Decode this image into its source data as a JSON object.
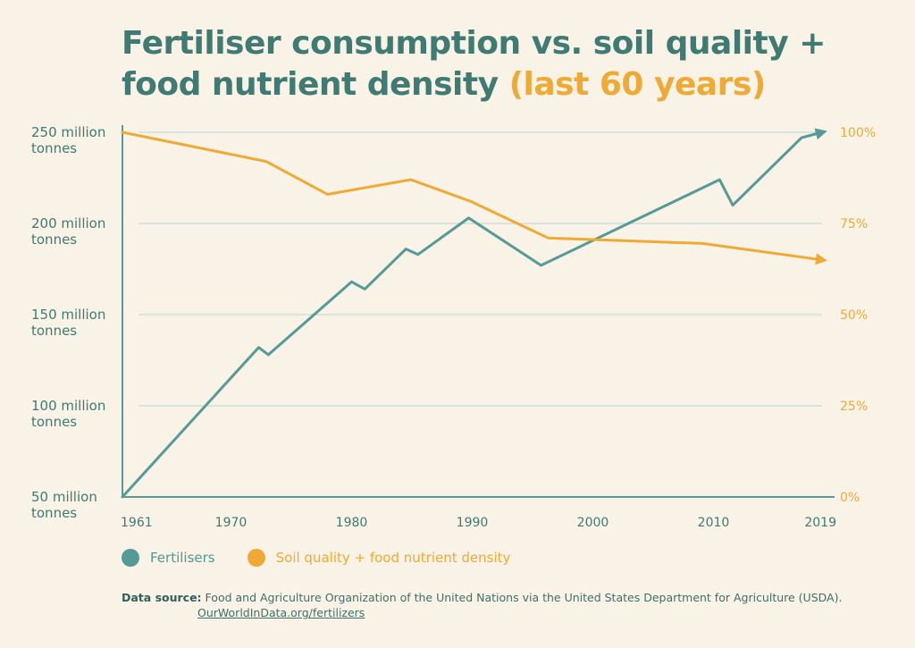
{
  "title": {
    "main": "Fertiliser consumption vs. soil quality + food nutrient density",
    "accent": "(last 60 years)"
  },
  "colors": {
    "fertilisers": "#559a96",
    "soil": "#eeaa35",
    "title": "#3f7a73",
    "grid": "#bcd6d2",
    "background": "#f9f2e6"
  },
  "legend": {
    "fertilisers": "Fertilisers",
    "soil": "Soil quality + food nutrient density"
  },
  "source": {
    "label": "Data source:",
    "text": "Food and Agriculture Organization of the United Nations via the United States Department for Agriculture (USDA).",
    "link": "OurWorldInData.org/fertilizers"
  },
  "chart_data": {
    "type": "line",
    "x_ticks": [
      "1961",
      "1970",
      "1980",
      "1990",
      "2000",
      "2010",
      "2019"
    ],
    "xlim": [
      1961,
      2019
    ],
    "y_left": {
      "ticks": [
        {
          "value": 250,
          "line1": "250 million",
          "line2": "tonnes"
        },
        {
          "value": 200,
          "line1": "200 million",
          "line2": "tonnes"
        },
        {
          "value": 150,
          "line1": "150 million",
          "line2": "tonnes"
        },
        {
          "value": 100,
          "line1": "100 million",
          "line2": "tonnes"
        },
        {
          "value": 50,
          "line1": "50 million",
          "line2": "tonnes"
        }
      ],
      "ylim": [
        50,
        250
      ]
    },
    "y_right": {
      "ticks": [
        {
          "value": 100,
          "label": "100%"
        },
        {
          "value": 75,
          "label": "75%"
        },
        {
          "value": 50,
          "label": "50%"
        },
        {
          "value": 25,
          "label": "25%"
        },
        {
          "value": 0,
          "label": "0%"
        }
      ],
      "ylim": [
        0,
        100
      ]
    },
    "grid": true,
    "series": [
      {
        "name": "Fertilisers",
        "axis": "left",
        "x": [
          1961,
          1972.3,
          1973.1,
          1980,
          1981.1,
          1984.5,
          1985.5,
          1989.7,
          1995.7,
          2010.5,
          2011.6,
          2017.3,
          2019
        ],
        "y": [
          50,
          132,
          128,
          168,
          164,
          186,
          183,
          203,
          177,
          224,
          210,
          247,
          250
        ]
      },
      {
        "name": "Soil quality + food nutrient density",
        "axis": "right",
        "x": [
          1961,
          1972.9,
          1978,
          1984.9,
          1989.9,
          1996.3,
          2009.1,
          2019
        ],
        "y": [
          100,
          92,
          83,
          87,
          81,
          71,
          69.5,
          65
        ]
      }
    ]
  }
}
